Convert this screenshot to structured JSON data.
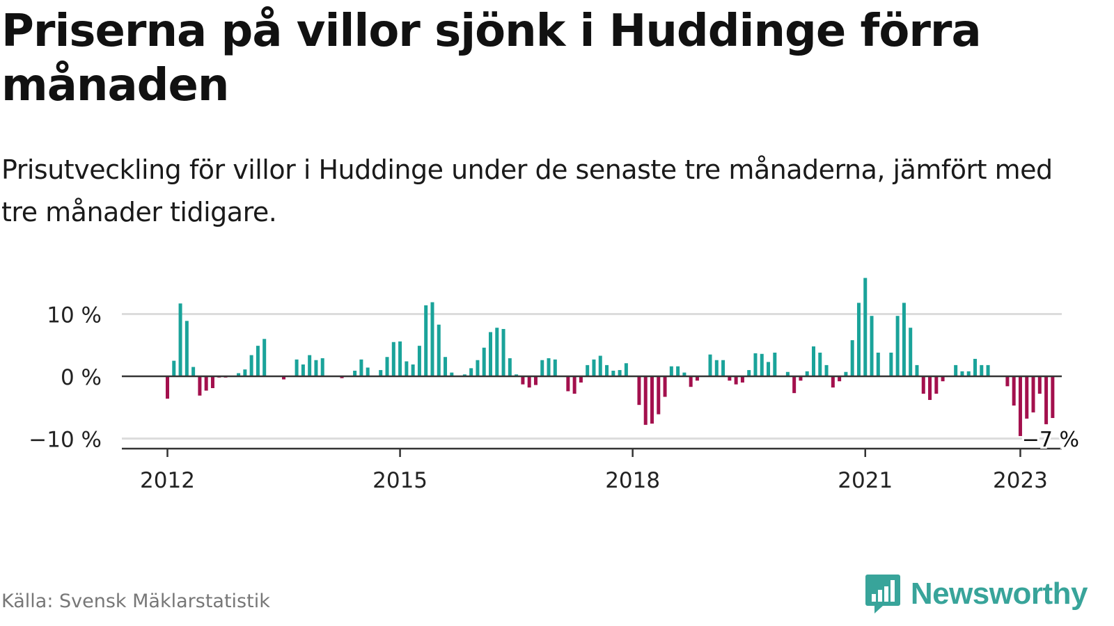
{
  "header": {
    "title": "Priserna på villor sjönk i Huddinge förra månaden",
    "subtitle": "Prisutveckling för villor i Huddinge under de senaste tre månaderna, jämfört med tre månader tidigare."
  },
  "footer": {
    "source": "Källa: Svensk Mäklarstatistik",
    "brand": "Newsworthy",
    "brand_icon": "bar-chart-chat-icon"
  },
  "colors": {
    "positive": "#1aa39a",
    "negative": "#a3104d",
    "grid": "#dcdcdc",
    "zero_line": "#333333",
    "axis": "#333333",
    "brand": "#38a49a"
  },
  "chart_data": {
    "type": "bar",
    "title": "Priserna på villor sjönk i Huddinge förra månaden",
    "subtitle": "Prisutveckling för villor i Huddinge under de senaste tre månaderna, jämfört med tre månader tidigare.",
    "xlabel": "",
    "ylabel": "",
    "x_ticks": [
      "2012",
      "2015",
      "2018",
      "2021",
      "2023"
    ],
    "y_ticks": [
      {
        "value": 10,
        "label": "10 %"
      },
      {
        "value": 0,
        "label": "0 %"
      },
      {
        "value": -10,
        "label": "−10 %"
      }
    ],
    "ylim": [
      -11.5,
      17
    ],
    "grid": true,
    "legend": "none",
    "annotation": {
      "label": "−7 %",
      "value": -6.7
    },
    "values": [
      -3.6,
      2.5,
      11.7,
      8.9,
      1.5,
      -3.1,
      -2.3,
      -1.9,
      -0.2,
      -0.2,
      0.0,
      0.5,
      1.1,
      3.4,
      4.9,
      6.0,
      0.0,
      0.0,
      -0.5,
      0.0,
      2.7,
      1.9,
      3.4,
      2.6,
      2.9,
      0.0,
      0.0,
      -0.3,
      0.0,
      0.9,
      2.7,
      1.4,
      0.0,
      1.0,
      3.1,
      5.5,
      5.6,
      2.4,
      1.9,
      4.9,
      11.4,
      11.9,
      8.3,
      3.1,
      0.6,
      0.0,
      0.3,
      1.3,
      2.6,
      4.6,
      7.1,
      7.8,
      7.6,
      2.9,
      0.3,
      -1.3,
      -1.8,
      -1.4,
      2.6,
      2.9,
      2.7,
      0.0,
      -2.4,
      -2.8,
      -1.0,
      1.8,
      2.7,
      3.3,
      1.8,
      0.9,
      1.0,
      2.1,
      0.0,
      -4.6,
      -7.8,
      -7.6,
      -6.1,
      -3.3,
      1.6,
      1.6,
      0.6,
      -1.7,
      -0.7,
      0.0,
      3.5,
      2.6,
      2.6,
      -0.7,
      -1.3,
      -1.0,
      1.0,
      3.7,
      3.6,
      2.3,
      3.8,
      0.0,
      0.7,
      -2.7,
      -0.7,
      0.8,
      4.8,
      3.8,
      1.8,
      -1.8,
      -0.8,
      0.7,
      5.8,
      11.8,
      15.8,
      9.7,
      3.8,
      0.0,
      3.8,
      9.7,
      11.8,
      7.8,
      1.8,
      -2.8,
      -3.8,
      -2.8,
      -0.8,
      0.0,
      1.8,
      0.8,
      0.8,
      2.8,
      1.8,
      1.8,
      0.0,
      0.0,
      -1.6,
      -4.7,
      -9.6,
      -6.8,
      -5.8,
      -2.8,
      -7.7,
      -6.7
    ]
  }
}
